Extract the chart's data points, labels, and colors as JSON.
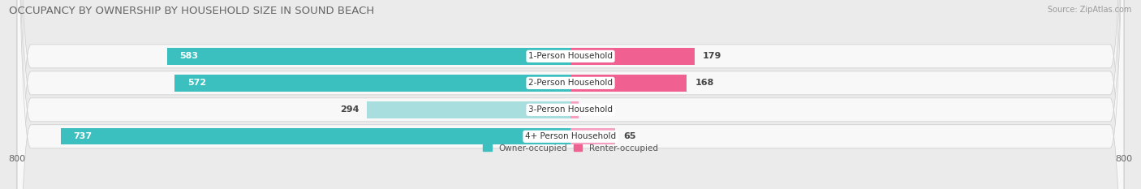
{
  "title": "OCCUPANCY BY OWNERSHIP BY HOUSEHOLD SIZE IN SOUND BEACH",
  "source": "Source: ZipAtlas.com",
  "categories": [
    "1-Person Household",
    "2-Person Household",
    "3-Person Household",
    "4+ Person Household"
  ],
  "owner_values": [
    583,
    572,
    294,
    737
  ],
  "renter_values": [
    179,
    168,
    12,
    65
  ],
  "owner_color_dark": "#3bbfbf",
  "owner_color_light": "#a8dede",
  "renter_color_dark": "#f06090",
  "renter_color_light": "#f5a0c0",
  "axis_min": -800,
  "axis_max": 800,
  "bg_color": "#ebebeb",
  "row_bg_color": "#f8f8f8",
  "bar_height": 0.62,
  "title_fontsize": 9.5,
  "label_fontsize": 8,
  "tick_fontsize": 8,
  "source_fontsize": 7,
  "legend_label_owner": "Owner-occupied",
  "legend_label_renter": "Renter-occupied",
  "owner_threshold": 400,
  "renter_threshold": 100
}
